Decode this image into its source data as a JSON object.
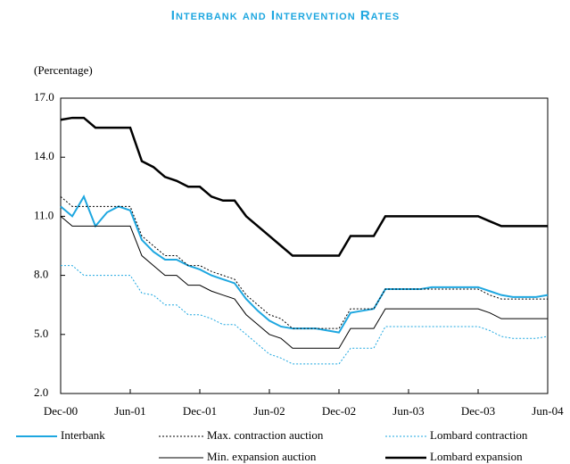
{
  "chart_data": {
    "type": "line",
    "title": "Interbank and Intervention Rates",
    "y_label": "(Percentage)",
    "xlim": [
      0,
      42
    ],
    "xticks": [
      {
        "value": 0,
        "label": "Dec-00"
      },
      {
        "value": 6,
        "label": "Jun-01"
      },
      {
        "value": 12,
        "label": "Dec-01"
      },
      {
        "value": 18,
        "label": "Jun-02"
      },
      {
        "value": 24,
        "label": "Dec-02"
      },
      {
        "value": 30,
        "label": "Jun-03"
      },
      {
        "value": 36,
        "label": "Dec-03"
      },
      {
        "value": 42,
        "label": "Jun-04"
      }
    ],
    "ylim": [
      2,
      17
    ],
    "yticks": [
      {
        "value": 2,
        "label": "2.0"
      },
      {
        "value": 5,
        "label": "5.0"
      },
      {
        "value": 8,
        "label": "8.0"
      },
      {
        "value": 11,
        "label": "11.0"
      },
      {
        "value": 14,
        "label": "14.0"
      },
      {
        "value": 17,
        "label": "17.0"
      }
    ],
    "x": [
      0,
      1,
      2,
      3,
      4,
      5,
      6,
      7,
      8,
      9,
      10,
      11,
      12,
      13,
      14,
      15,
      16,
      17,
      18,
      19,
      20,
      21,
      22,
      23,
      24,
      25,
      26,
      27,
      28,
      29,
      30,
      31,
      32,
      33,
      34,
      35,
      36,
      37,
      38,
      39,
      40,
      41,
      42
    ],
    "series": [
      {
        "name": "Interbank",
        "color": "#1ea7e0",
        "values": [
          11.5,
          11.0,
          12.0,
          10.5,
          11.2,
          11.5,
          11.3,
          9.8,
          9.2,
          8.8,
          8.8,
          8.5,
          8.3,
          8.0,
          7.8,
          7.6,
          6.8,
          6.2,
          5.7,
          5.4,
          5.3,
          5.3,
          5.3,
          5.2,
          5.1,
          6.1,
          6.2,
          6.3,
          7.3,
          7.3,
          7.3,
          7.3,
          7.4,
          7.4,
          7.4,
          7.4,
          7.4,
          7.2,
          7.0,
          6.9,
          6.9,
          6.9,
          7.0
        ]
      },
      {
        "name": "Max. contraction auction",
        "color": "#000000",
        "dash": "dotted",
        "values": [
          12.0,
          11.5,
          11.5,
          11.5,
          11.5,
          11.5,
          11.5,
          10.0,
          9.5,
          9.0,
          9.0,
          8.5,
          8.5,
          8.2,
          8.0,
          7.8,
          7.0,
          6.5,
          6.0,
          5.8,
          5.3,
          5.3,
          5.3,
          5.3,
          5.3,
          6.3,
          6.3,
          6.3,
          7.3,
          7.3,
          7.3,
          7.3,
          7.3,
          7.3,
          7.3,
          7.3,
          7.3,
          7.0,
          6.8,
          6.8,
          6.8,
          6.8,
          6.8
        ]
      },
      {
        "name": "Lombard contraction",
        "color": "#1ea7e0",
        "dash": "dotted",
        "values": [
          8.5,
          8.5,
          8.0,
          8.0,
          8.0,
          8.0,
          8.0,
          7.1,
          7.0,
          6.5,
          6.5,
          6.0,
          6.0,
          5.8,
          5.5,
          5.5,
          5.0,
          4.5,
          4.0,
          3.8,
          3.5,
          3.5,
          3.5,
          3.5,
          3.5,
          4.3,
          4.3,
          4.3,
          5.4,
          5.4,
          5.4,
          5.4,
          5.4,
          5.4,
          5.4,
          5.4,
          5.4,
          5.2,
          4.9,
          4.8,
          4.8,
          4.8,
          4.9
        ]
      },
      {
        "name": "Min. expansion auction",
        "color": "#000000",
        "values": [
          11.0,
          10.5,
          10.5,
          10.5,
          10.5,
          10.5,
          10.5,
          9.0,
          8.5,
          8.0,
          8.0,
          7.5,
          7.5,
          7.2,
          7.0,
          6.8,
          6.0,
          5.5,
          5.0,
          4.8,
          4.3,
          4.3,
          4.3,
          4.3,
          4.3,
          5.3,
          5.3,
          5.3,
          6.3,
          6.3,
          6.3,
          6.3,
          6.3,
          6.3,
          6.3,
          6.3,
          6.3,
          6.1,
          5.8,
          5.8,
          5.8,
          5.8,
          5.8
        ]
      },
      {
        "name": "Lombard expansion",
        "color": "#000000",
        "values": [
          15.9,
          16.0,
          16.0,
          15.5,
          15.5,
          15.5,
          15.5,
          13.8,
          13.5,
          13.0,
          12.8,
          12.5,
          12.5,
          12.0,
          11.8,
          11.8,
          11.0,
          10.5,
          10.0,
          9.5,
          9.0,
          9.0,
          9.0,
          9.0,
          9.0,
          10.0,
          10.0,
          10.0,
          11.0,
          11.0,
          11.0,
          11.0,
          11.0,
          11.0,
          11.0,
          11.0,
          11.0,
          10.75,
          10.5,
          10.5,
          10.5,
          10.5,
          10.5
        ]
      }
    ]
  }
}
